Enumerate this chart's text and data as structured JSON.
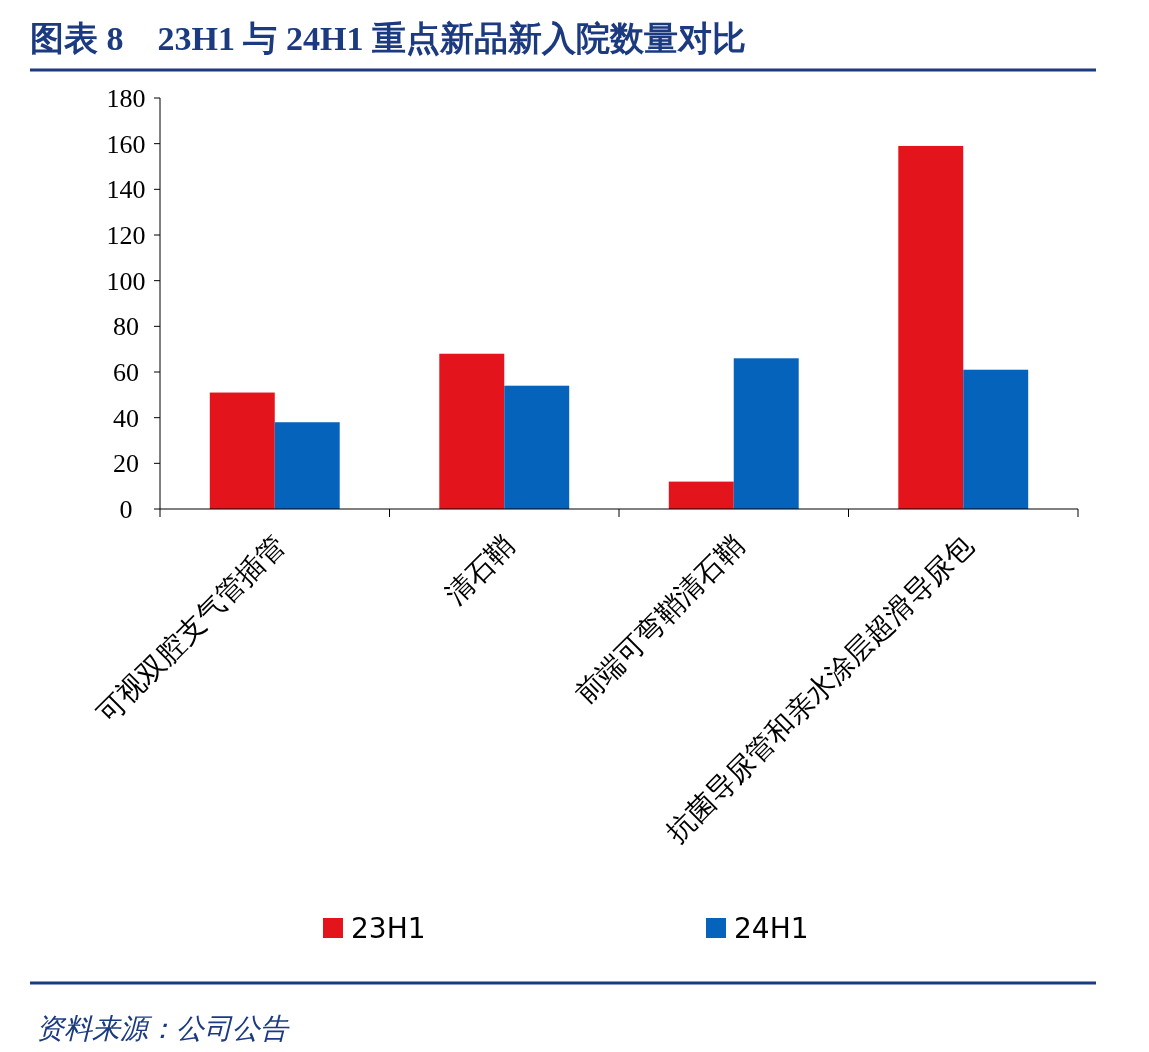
{
  "chart_data": {
    "type": "bar",
    "title": "图表 8　23H1 与 24H1 重点新品新入院数量对比",
    "categories": [
      "可视双腔支气管插管",
      "清石鞘",
      "前端可弯鞘清石鞘",
      "抗菌导尿管和亲水涂层超滑导尿包"
    ],
    "series": [
      {
        "name": "23H1",
        "color": "#e3141b",
        "values": [
          51,
          68,
          12,
          159
        ]
      },
      {
        "name": "24H1",
        "color": "#0563bb",
        "values": [
          38,
          54,
          66,
          61
        ]
      }
    ],
    "ylim": [
      0,
      180
    ],
    "yticks": [
      0,
      20,
      40,
      60,
      80,
      100,
      120,
      140,
      160,
      180
    ],
    "grid": false,
    "legend": "bottom",
    "annotations": [
      "资料来源：公司公告"
    ]
  }
}
